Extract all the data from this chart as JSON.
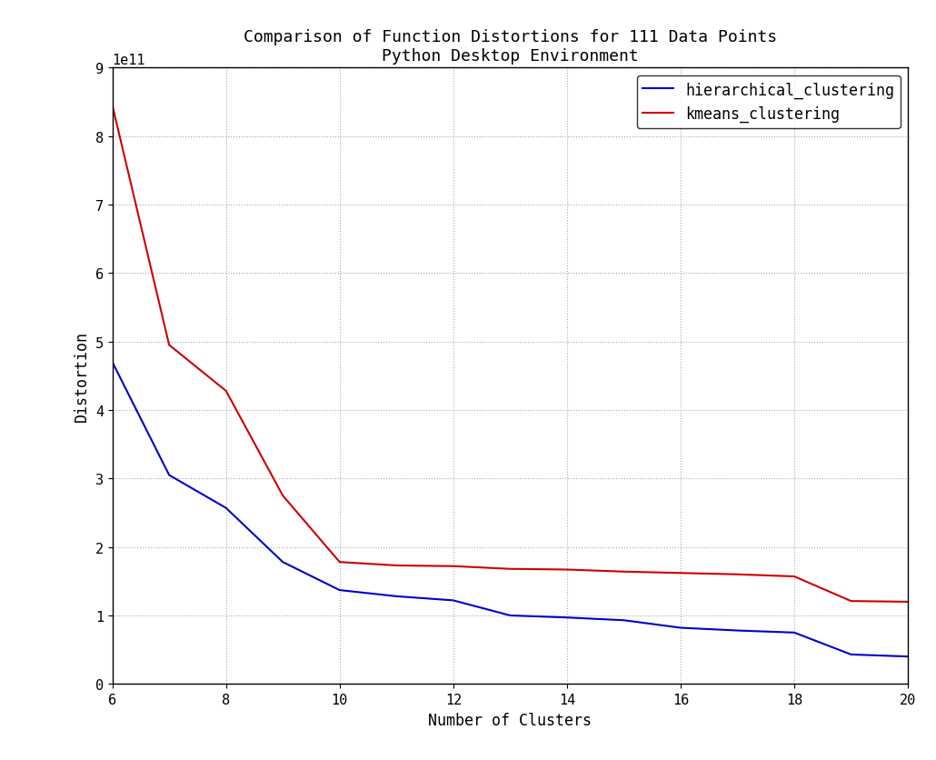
{
  "title_line1": "Comparison of Function Distortions for 111 Data Points",
  "title_line2": "Python Desktop Environment",
  "xlabel": "Number of Clusters",
  "ylabel": "Distortion",
  "x_values": [
    6,
    7,
    8,
    9,
    10,
    11,
    12,
    13,
    14,
    15,
    16,
    17,
    18,
    19,
    20
  ],
  "hierarchical_clustering": [
    470000000000.0,
    305000000000.0,
    257000000000.0,
    178000000000.0,
    137000000000.0,
    128000000000.0,
    122000000000.0,
    100000000000.0,
    97000000000.0,
    93000000000.0,
    82000000000.0,
    78000000000.0,
    75000000000.0,
    43000000000.0,
    40000000000.0
  ],
  "kmeans_clustering": [
    845000000000.0,
    495000000000.0,
    428000000000.0,
    275000000000.0,
    178000000000.0,
    173000000000.0,
    172000000000.0,
    168000000000.0,
    167000000000.0,
    164000000000.0,
    162000000000.0,
    160000000000.0,
    157000000000.0,
    121000000000.0,
    120000000000.0
  ],
  "hierarchical_color": "#0000cc",
  "kmeans_color": "#cc0000",
  "line_width": 1.5,
  "ylim": [
    0,
    900000000000.0
  ],
  "xlim": [
    6,
    20
  ],
  "yticks": [
    0,
    100000000000.0,
    200000000000.0,
    300000000000.0,
    400000000000.0,
    500000000000.0,
    600000000000.0,
    700000000000.0,
    800000000000.0,
    900000000000.0
  ],
  "xticks": [
    6,
    8,
    10,
    12,
    14,
    16,
    18,
    20
  ],
  "grid_color": "#aaaaaa",
  "background_color": "#ffffff",
  "legend_labels": [
    "hierarchical_clustering",
    "kmeans_clustering"
  ],
  "title_fontsize": 13,
  "axis_label_fontsize": 12,
  "tick_fontsize": 11,
  "legend_fontsize": 12
}
